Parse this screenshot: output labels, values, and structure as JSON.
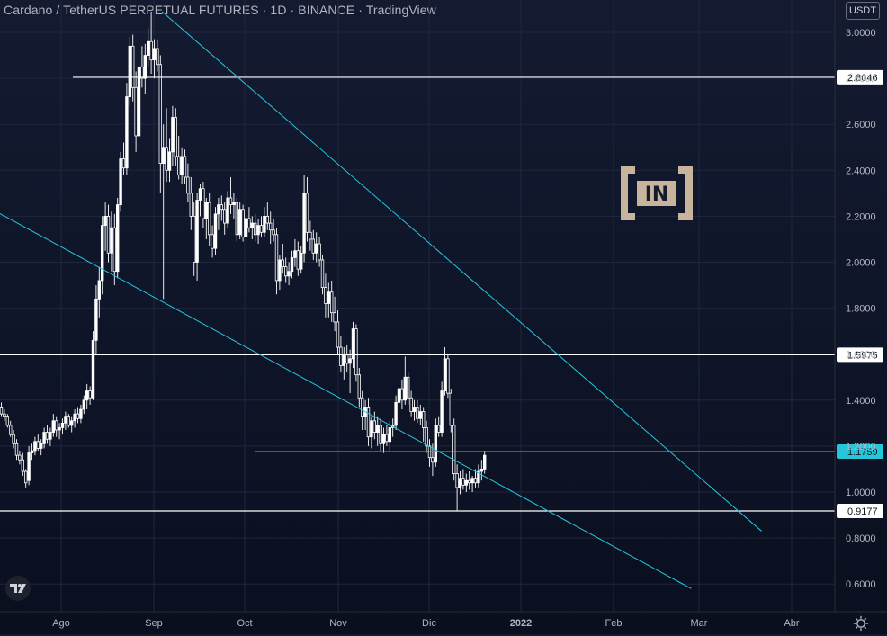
{
  "header": {
    "title": "Cardano / TetherUS PERPETUAL FUTURES · 1D · BINANCE · TradingView",
    "currency": "USDT"
  },
  "watermark": {
    "text": "IN"
  },
  "chart_data": {
    "type": "candlestick",
    "y_ticks": [
      "3.0000",
      "2.8000",
      "2.6000",
      "2.4000",
      "2.2000",
      "2.0000",
      "1.8000",
      "1.6000",
      "1.4000",
      "1.2000",
      "1.0000",
      "0.8000",
      "0.6000"
    ],
    "x_ticks": [
      "Ago",
      "Sep",
      "Oct",
      "Nov",
      "Dic",
      "2022",
      "Feb",
      "Mar",
      "Abr"
    ],
    "ylim": [
      0.5,
      3.1
    ],
    "horizontal_levels": [
      {
        "value": 2.8046,
        "label": "2.8046",
        "color": "#ffffff"
      },
      {
        "value": 1.5975,
        "label": "1.5975",
        "color": "#ffffff"
      },
      {
        "value": 1.1759,
        "label": "1.1759",
        "color": "#26c6da"
      },
      {
        "value": 0.9177,
        "label": "0.9177",
        "color": "#ffffff"
      }
    ],
    "trend_lines": [
      {
        "name": "upper",
        "from": [
          "2021-09-03",
          3.09
        ],
        "to": [
          "2022-03-18",
          0.83
        ]
      },
      {
        "name": "lower",
        "from": [
          "2021-07-08",
          2.24
        ],
        "to": [
          "2022-02-23",
          0.58
        ]
      }
    ],
    "candles": [
      [
        1.37,
        1.39,
        1.33,
        1.34
      ],
      [
        1.34,
        1.36,
        1.31,
        1.33
      ],
      [
        1.33,
        1.34,
        1.28,
        1.29
      ],
      [
        1.29,
        1.31,
        1.24,
        1.25
      ],
      [
        1.25,
        1.27,
        1.19,
        1.21
      ],
      [
        1.21,
        1.23,
        1.14,
        1.16
      ],
      [
        1.16,
        1.18,
        1.12,
        1.14
      ],
      [
        1.14,
        1.17,
        1.07,
        1.09
      ],
      [
        1.09,
        1.1,
        1.02,
        1.04
      ],
      [
        1.05,
        1.2,
        1.03,
        1.17
      ],
      [
        1.17,
        1.21,
        1.14,
        1.18
      ],
      [
        1.18,
        1.24,
        1.16,
        1.22
      ],
      [
        1.22,
        1.25,
        1.18,
        1.19
      ],
      [
        1.19,
        1.23,
        1.16,
        1.21
      ],
      [
        1.21,
        1.28,
        1.19,
        1.26
      ],
      [
        1.26,
        1.29,
        1.21,
        1.23
      ],
      [
        1.23,
        1.28,
        1.2,
        1.26
      ],
      [
        1.26,
        1.34,
        1.24,
        1.31
      ],
      [
        1.31,
        1.33,
        1.24,
        1.27
      ],
      [
        1.27,
        1.3,
        1.23,
        1.28
      ],
      [
        1.28,
        1.32,
        1.25,
        1.3
      ],
      [
        1.3,
        1.35,
        1.27,
        1.33
      ],
      [
        1.33,
        1.34,
        1.28,
        1.29
      ],
      [
        1.29,
        1.33,
        1.26,
        1.31
      ],
      [
        1.31,
        1.36,
        1.28,
        1.34
      ],
      [
        1.34,
        1.37,
        1.3,
        1.32
      ],
      [
        1.32,
        1.38,
        1.3,
        1.36
      ],
      [
        1.36,
        1.42,
        1.34,
        1.4
      ],
      [
        1.4,
        1.47,
        1.36,
        1.44
      ],
      [
        1.44,
        1.46,
        1.38,
        1.41
      ],
      [
        1.41,
        1.7,
        1.4,
        1.66
      ],
      [
        1.66,
        1.9,
        1.6,
        1.84
      ],
      [
        1.84,
        1.98,
        1.76,
        1.92
      ],
      [
        1.92,
        2.2,
        1.86,
        2.16
      ],
      [
        2.16,
        2.26,
        2.05,
        2.2
      ],
      [
        2.2,
        2.25,
        2.0,
        2.04
      ],
      [
        2.04,
        2.22,
        1.96,
        2.15
      ],
      [
        2.15,
        2.21,
        1.9,
        1.96
      ],
      [
        1.96,
        2.28,
        1.93,
        2.25
      ],
      [
        2.25,
        2.48,
        2.22,
        2.45
      ],
      [
        2.45,
        2.52,
        2.38,
        2.41
      ],
      [
        2.41,
        2.78,
        2.38,
        2.72
      ],
      [
        2.72,
        2.98,
        2.68,
        2.94
      ],
      [
        2.94,
        2.99,
        2.7,
        2.76
      ],
      [
        2.76,
        2.83,
        2.48,
        2.55
      ],
      [
        2.55,
        2.92,
        2.52,
        2.85
      ],
      [
        2.85,
        2.94,
        2.76,
        2.8
      ],
      [
        2.8,
        2.95,
        2.73,
        2.9
      ],
      [
        2.9,
        3.02,
        2.85,
        2.96
      ],
      [
        2.96,
        3.09,
        2.82,
        2.88
      ],
      [
        2.88,
        2.97,
        2.8,
        2.93
      ],
      [
        2.93,
        2.97,
        2.83,
        2.86
      ],
      [
        2.86,
        2.9,
        2.3,
        2.43
      ],
      [
        2.43,
        2.6,
        1.84,
        2.5
      ],
      [
        2.5,
        2.67,
        2.35,
        2.4
      ],
      [
        2.4,
        2.54,
        2.35,
        2.48
      ],
      [
        2.48,
        2.68,
        2.42,
        2.63
      ],
      [
        2.63,
        2.67,
        2.42,
        2.46
      ],
      [
        2.46,
        2.55,
        2.36,
        2.38
      ],
      [
        2.38,
        2.5,
        2.34,
        2.46
      ],
      [
        2.46,
        2.49,
        2.34,
        2.37
      ],
      [
        2.37,
        2.43,
        2.26,
        2.3
      ],
      [
        2.3,
        2.37,
        2.14,
        2.2
      ],
      [
        2.2,
        2.26,
        1.94,
        2.0
      ],
      [
        2.0,
        2.3,
        1.92,
        2.27
      ],
      [
        2.27,
        2.34,
        2.2,
        2.32
      ],
      [
        2.32,
        2.35,
        2.15,
        2.19
      ],
      [
        2.19,
        2.28,
        2.1,
        2.26
      ],
      [
        2.26,
        2.3,
        2.07,
        2.12
      ],
      [
        2.12,
        2.16,
        2.02,
        2.06
      ],
      [
        2.06,
        2.24,
        2.03,
        2.21
      ],
      [
        2.21,
        2.28,
        2.14,
        2.25
      ],
      [
        2.25,
        2.29,
        2.18,
        2.23
      ],
      [
        2.23,
        2.26,
        2.12,
        2.17
      ],
      [
        2.17,
        2.31,
        2.15,
        2.28
      ],
      [
        2.28,
        2.37,
        2.21,
        2.25
      ],
      [
        2.25,
        2.3,
        2.19,
        2.26
      ],
      [
        2.26,
        2.28,
        2.09,
        2.12
      ],
      [
        2.12,
        2.26,
        2.1,
        2.23
      ],
      [
        2.23,
        2.25,
        2.09,
        2.11
      ],
      [
        2.11,
        2.21,
        2.07,
        2.19
      ],
      [
        2.19,
        2.24,
        2.13,
        2.15
      ],
      [
        2.15,
        2.2,
        2.1,
        2.17
      ],
      [
        2.17,
        2.21,
        2.09,
        2.12
      ],
      [
        2.12,
        2.19,
        2.08,
        2.16
      ],
      [
        2.16,
        2.2,
        2.11,
        2.13
      ],
      [
        2.13,
        2.24,
        2.11,
        2.2
      ],
      [
        2.2,
        2.26,
        2.14,
        2.17
      ],
      [
        2.17,
        2.22,
        2.08,
        2.14
      ],
      [
        2.14,
        2.19,
        2.09,
        2.12
      ],
      [
        2.12,
        2.15,
        1.86,
        1.92
      ],
      [
        1.92,
        2.03,
        1.88,
        2.01
      ],
      [
        2.01,
        2.08,
        1.95,
        1.98
      ],
      [
        1.98,
        2.02,
        1.91,
        1.94
      ],
      [
        1.94,
        2.0,
        1.9,
        1.96
      ],
      [
        1.96,
        2.05,
        1.93,
        2.02
      ],
      [
        2.02,
        2.1,
        1.98,
        2.05
      ],
      [
        2.05,
        2.09,
        1.94,
        1.97
      ],
      [
        1.97,
        2.07,
        1.95,
        2.04
      ],
      [
        2.04,
        2.38,
        2.0,
        2.3
      ],
      [
        2.3,
        2.37,
        2.09,
        2.13
      ],
      [
        2.13,
        2.18,
        2.05,
        2.1
      ],
      [
        2.1,
        2.14,
        2.01,
        2.04
      ],
      [
        2.04,
        2.13,
        2.0,
        2.08
      ],
      [
        2.08,
        2.11,
        1.98,
        2.01
      ],
      [
        2.01,
        2.03,
        1.86,
        1.89
      ],
      [
        1.89,
        1.95,
        1.76,
        1.82
      ],
      [
        1.82,
        1.91,
        1.76,
        1.87
      ],
      [
        1.87,
        1.92,
        1.74,
        1.78
      ],
      [
        1.78,
        1.85,
        1.7,
        1.74
      ],
      [
        1.74,
        1.79,
        1.6,
        1.63
      ],
      [
        1.63,
        1.68,
        1.52,
        1.55
      ],
      [
        1.55,
        1.63,
        1.49,
        1.6
      ],
      [
        1.6,
        1.64,
        1.52,
        1.56
      ],
      [
        1.56,
        1.62,
        1.43,
        1.58
      ],
      [
        1.58,
        1.74,
        1.54,
        1.71
      ],
      [
        1.71,
        1.73,
        1.48,
        1.51
      ],
      [
        1.51,
        1.54,
        1.37,
        1.41
      ],
      [
        1.41,
        1.44,
        1.27,
        1.33
      ],
      [
        1.33,
        1.4,
        1.27,
        1.37
      ],
      [
        1.37,
        1.41,
        1.2,
        1.24
      ],
      [
        1.24,
        1.33,
        1.19,
        1.31
      ],
      [
        1.31,
        1.35,
        1.23,
        1.26
      ],
      [
        1.26,
        1.33,
        1.2,
        1.29
      ],
      [
        1.29,
        1.32,
        1.18,
        1.21
      ],
      [
        1.21,
        1.28,
        1.17,
        1.25
      ],
      [
        1.25,
        1.29,
        1.2,
        1.22
      ],
      [
        1.22,
        1.31,
        1.18,
        1.28
      ],
      [
        1.28,
        1.32,
        1.24,
        1.29
      ],
      [
        1.29,
        1.42,
        1.27,
        1.39
      ],
      [
        1.39,
        1.48,
        1.36,
        1.45
      ],
      [
        1.45,
        1.49,
        1.36,
        1.4
      ],
      [
        1.4,
        1.59,
        1.38,
        1.5
      ],
      [
        1.5,
        1.52,
        1.38,
        1.41
      ],
      [
        1.41,
        1.44,
        1.33,
        1.35
      ],
      [
        1.35,
        1.4,
        1.31,
        1.37
      ],
      [
        1.37,
        1.4,
        1.3,
        1.32
      ],
      [
        1.32,
        1.38,
        1.29,
        1.35
      ],
      [
        1.35,
        1.37,
        1.22,
        1.28
      ],
      [
        1.28,
        1.31,
        1.17,
        1.2
      ],
      [
        1.2,
        1.23,
        1.11,
        1.15
      ],
      [
        1.15,
        1.21,
        1.07,
        1.13
      ],
      [
        1.13,
        1.32,
        1.11,
        1.29
      ],
      [
        1.29,
        1.33,
        1.24,
        1.26
      ],
      [
        1.26,
        1.48,
        1.24,
        1.44
      ],
      [
        1.44,
        1.63,
        1.42,
        1.58
      ],
      [
        1.58,
        1.6,
        1.41,
        1.43
      ],
      [
        1.43,
        1.45,
        1.26,
        1.29
      ],
      [
        1.29,
        1.32,
        1.05,
        1.08
      ],
      [
        1.08,
        1.12,
        0.92,
        1.02
      ],
      [
        1.02,
        1.09,
        0.99,
        1.06
      ],
      [
        1.06,
        1.1,
        1.01,
        1.03
      ],
      [
        1.03,
        1.08,
        1.0,
        1.05
      ],
      [
        1.05,
        1.09,
        1.01,
        1.04
      ],
      [
        1.04,
        1.07,
        1.0,
        1.06
      ],
      [
        1.06,
        1.1,
        1.02,
        1.04
      ],
      [
        1.04,
        1.12,
        1.02,
        1.09
      ],
      [
        1.09,
        1.14,
        1.05,
        1.1
      ],
      [
        1.1,
        1.18,
        1.08,
        1.16
      ]
    ]
  }
}
